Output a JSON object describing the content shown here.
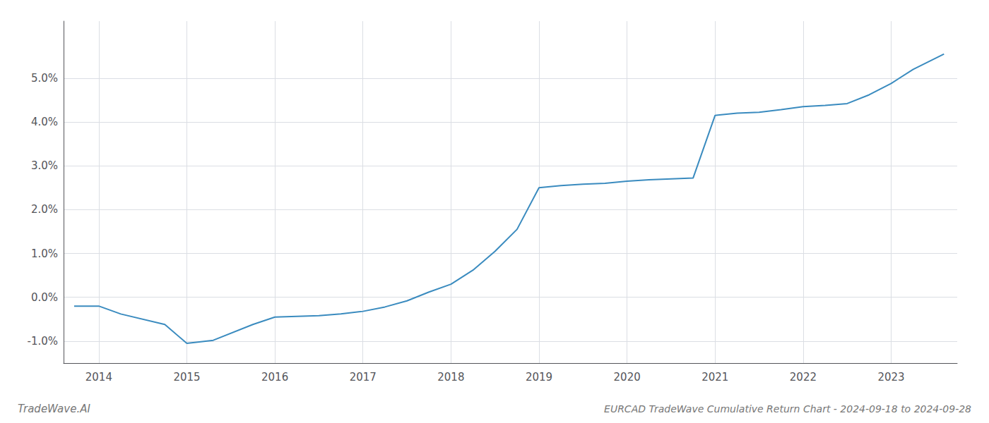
{
  "chart_data": {
    "type": "line",
    "title": "EURCAD TradeWave Cumulative Return Chart - 2024-09-18 to 2024-09-28",
    "annotations": [
      "TradeWave.AI"
    ],
    "x": [
      2013.72,
      2014.0,
      2014.25,
      2014.75,
      2015.0,
      2015.3,
      2015.75,
      2016.0,
      2016.5,
      2016.75,
      2017.0,
      2017.25,
      2017.5,
      2017.75,
      2018.0,
      2018.25,
      2018.5,
      2018.75,
      2019.0,
      2019.25,
      2019.5,
      2019.75,
      2020.0,
      2020.25,
      2020.5,
      2020.75,
      2021.0,
      2021.25,
      2021.5,
      2021.75,
      2022.0,
      2022.25,
      2022.5,
      2022.75,
      2023.0,
      2023.25,
      2023.6
    ],
    "values": [
      -0.2,
      -0.2,
      -0.38,
      -0.62,
      -1.05,
      -0.98,
      -0.62,
      -0.45,
      -0.42,
      -0.38,
      -0.32,
      -0.22,
      -0.08,
      0.12,
      0.3,
      0.62,
      1.05,
      1.55,
      2.5,
      2.55,
      2.58,
      2.6,
      2.65,
      2.68,
      2.7,
      2.72,
      4.15,
      4.2,
      4.22,
      4.28,
      4.35,
      4.38,
      4.42,
      4.62,
      4.88,
      5.2,
      5.55
    ],
    "color": "#3a8bbf",
    "xlim": [
      2013.6,
      2023.75
    ],
    "xticks": [
      2014,
      2015,
      2016,
      2017,
      2018,
      2019,
      2020,
      2021,
      2022,
      2023
    ],
    "ylim": [
      -1.5,
      6.3
    ],
    "yticks": [
      {
        "value": -1.0,
        "label": "-1.0%"
      },
      {
        "value": 0.0,
        "label": "0.0%"
      },
      {
        "value": 1.0,
        "label": "1.0%"
      },
      {
        "value": 2.0,
        "label": "2.0%"
      },
      {
        "value": 3.0,
        "label": "3.0%"
      },
      {
        "value": 4.0,
        "label": "4.0%"
      },
      {
        "value": 5.0,
        "label": "5.0%"
      }
    ],
    "grid": true
  }
}
